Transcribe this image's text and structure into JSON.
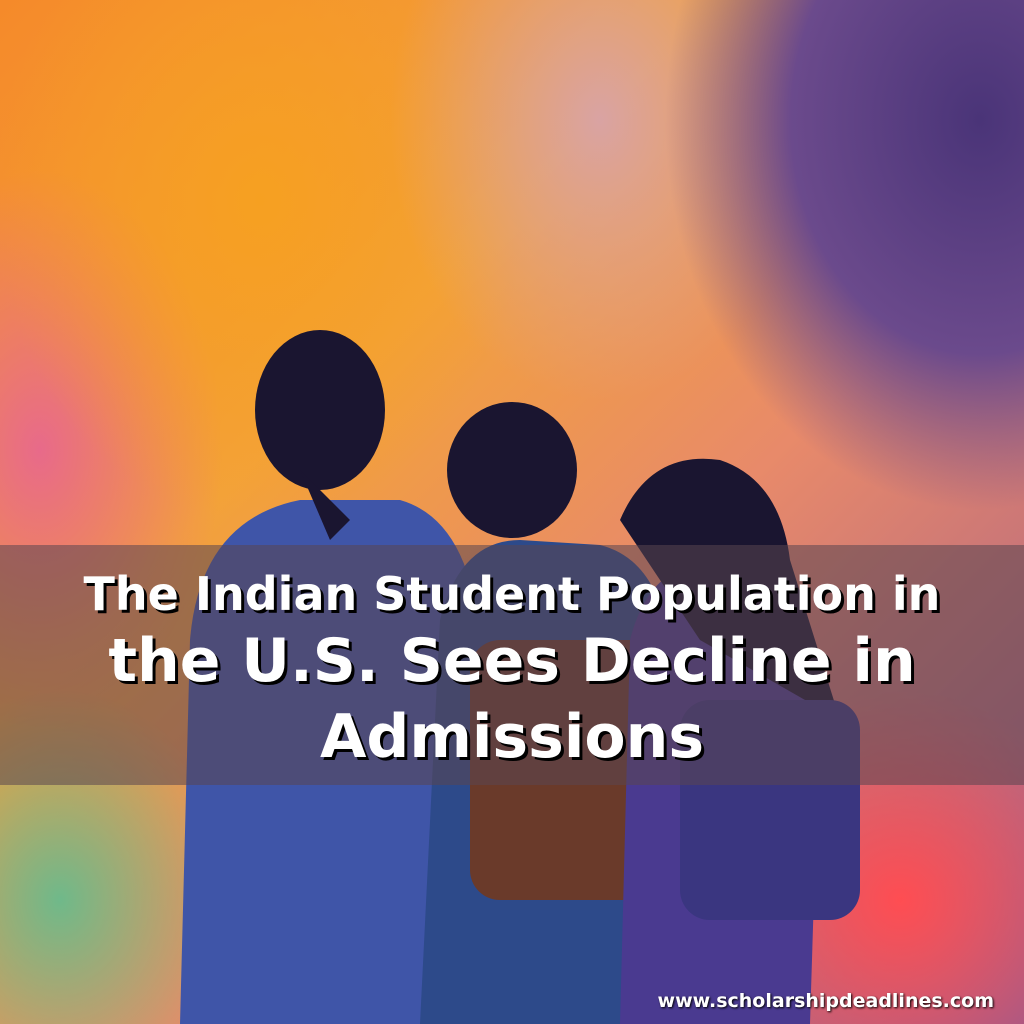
{
  "title": {
    "line1": "The Indian Student Population in",
    "line2": "the U.S. Sees Decline in",
    "line3": "Admissions"
  },
  "website": "www.scholarshipdeadlines.com"
}
